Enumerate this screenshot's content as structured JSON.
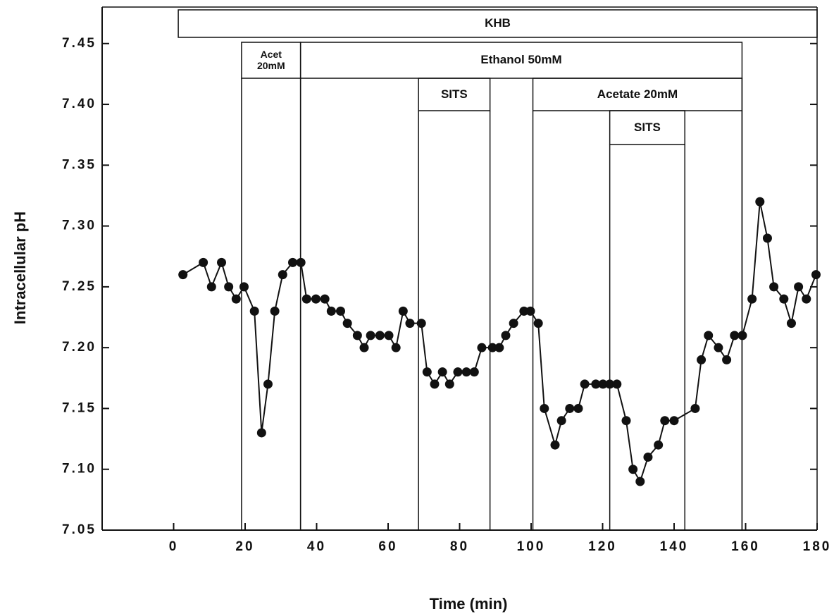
{
  "chart_data": {
    "type": "line",
    "x_label": "Time  (min)",
    "y_label": "Intracellular  pH",
    "color": "#111111",
    "xlim": [
      -20,
      180
    ],
    "xticks": [
      0,
      20,
      40,
      60,
      80,
      100,
      120,
      140,
      160,
      180
    ],
    "ylim": [
      7.05,
      7.48
    ],
    "yticks": [
      7.05,
      {
        "value": 7.1,
        "label": "7.10"
      },
      7.15,
      {
        "value": 7.2,
        "label": "7.20"
      },
      7.25,
      {
        "value": 7.3,
        "label": "7.30"
      },
      7.35,
      {
        "value": 7.4,
        "label": "7.40"
      },
      7.45
    ],
    "x": [
      2.6,
      8.3,
      10.6,
      13.4,
      15.4,
      17.5,
      19.7,
      22.6,
      24.6,
      26.4,
      28.3,
      30.5,
      33.3,
      35.6,
      37.2,
      39.8,
      42.3,
      44.1,
      46.7,
      48.6,
      51.4,
      53.3,
      55.1,
      57.7,
      60.2,
      62.2,
      64.2,
      66.1,
      69.3,
      70.9,
      73.0,
      75.2,
      77.2,
      79.5,
      81.9,
      84.1,
      86.2,
      89.2,
      91.1,
      92.9,
      95.1,
      98.0,
      99.8,
      102.0,
      103.7,
      106.7,
      108.5,
      110.8,
      113.2,
      115.0,
      118.1,
      120.1,
      122.0,
      124.0,
      126.6,
      128.5,
      130.5,
      132.7,
      135.6,
      137.4,
      140.0,
      145.9,
      147.6,
      149.6,
      152.4,
      154.7,
      156.9,
      159.1,
      161.8,
      164.0,
      166.1,
      167.9,
      170.7,
      172.8,
      174.8,
      177.0,
      179.7
    ],
    "values": [
      7.26,
      7.27,
      7.25,
      7.27,
      7.25,
      7.24,
      7.25,
      7.23,
      7.13,
      7.17,
      7.23,
      7.26,
      7.27,
      7.27,
      7.24,
      7.24,
      7.24,
      7.23,
      7.23,
      7.22,
      7.21,
      7.2,
      7.21,
      7.21,
      7.21,
      7.2,
      7.23,
      7.22,
      7.22,
      7.18,
      7.17,
      7.18,
      7.17,
      7.18,
      7.18,
      7.18,
      7.2,
      7.2,
      7.2,
      7.21,
      7.22,
      7.23,
      7.23,
      7.22,
      7.15,
      7.12,
      7.14,
      7.15,
      7.15,
      7.17,
      7.17,
      7.17,
      7.17,
      7.17,
      7.14,
      7.1,
      7.09,
      7.11,
      7.12,
      7.14,
      7.14,
      7.15,
      7.19,
      7.21,
      7.2,
      7.19,
      7.21,
      7.21,
      7.24,
      7.32,
      7.29,
      7.25,
      7.24,
      7.22,
      7.25,
      7.24,
      7.26
    ],
    "treatments": [
      {
        "label": "KHB",
        "start": 1.3,
        "end": 180
      },
      {
        "label": "Acet\n20mM",
        "start": 19,
        "end": 35.5
      },
      {
        "label": "Ethanol  50mM",
        "start": 35.5,
        "end": 159
      },
      {
        "label": "SITS",
        "start": 68.5,
        "end": 88.5
      },
      {
        "label": "Acetate  20mM",
        "start": 100.5,
        "end": 159
      },
      {
        "label": "SITS",
        "start": 122,
        "end": 143
      }
    ]
  }
}
